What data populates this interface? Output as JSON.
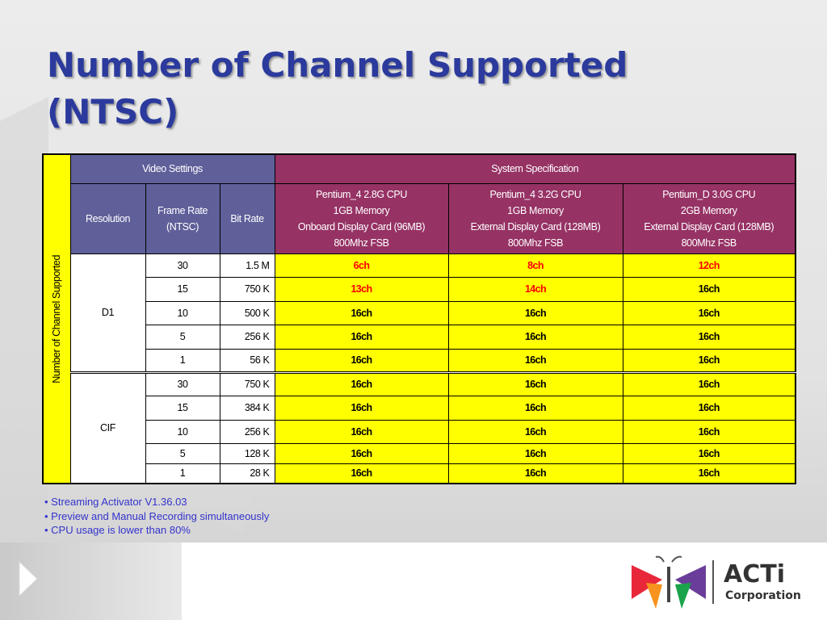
{
  "title": {
    "line1": "Number of Channel Supported",
    "line2": "(NTSC)"
  },
  "table": {
    "side_label": "Number of Channel Supported",
    "video_settings_label": "Video Settings",
    "system_spec_label": "System Specification",
    "col_resolution": "Resolution",
    "col_frame_rate": [
      "Frame Rate",
      "(NTSC)"
    ],
    "col_bit_rate": "Bit Rate",
    "specs": [
      [
        "Pentium_4 2.8G CPU",
        "1GB Memory",
        "Onboard Display Card (96MB)",
        "800Mhz FSB"
      ],
      [
        "Pentium_4 3.2G CPU",
        "1GB Memory",
        "External Display Card (128MB)",
        "800Mhz FSB"
      ],
      [
        "Pentium_D 3.0G CPU",
        "2GB Memory",
        "External Display Card (128MB)",
        "800Mhz FSB"
      ]
    ],
    "groups": [
      {
        "resolution": "D1",
        "rows": [
          {
            "fps": "30",
            "bitrate": "1.5 M",
            "ch": [
              "6ch",
              "8ch",
              "12ch"
            ],
            "red": [
              true,
              true,
              true
            ]
          },
          {
            "fps": "15",
            "bitrate": "750 K",
            "ch": [
              "13ch",
              "14ch",
              "16ch"
            ],
            "red": [
              true,
              true,
              false
            ]
          },
          {
            "fps": "10",
            "bitrate": "500 K",
            "ch": [
              "16ch",
              "16ch",
              "16ch"
            ],
            "red": [
              false,
              false,
              false
            ]
          },
          {
            "fps": "5",
            "bitrate": "256 K",
            "ch": [
              "16ch",
              "16ch",
              "16ch"
            ],
            "red": [
              false,
              false,
              false
            ]
          },
          {
            "fps": "1",
            "bitrate": "56 K",
            "ch": [
              "16ch",
              "16ch",
              "16ch"
            ],
            "red": [
              false,
              false,
              false
            ]
          }
        ]
      },
      {
        "resolution": "CIF",
        "rows": [
          {
            "fps": "30",
            "bitrate": "750 K",
            "ch": [
              "16ch",
              "16ch",
              "16ch"
            ],
            "red": [
              false,
              false,
              false
            ]
          },
          {
            "fps": "15",
            "bitrate": "384 K",
            "ch": [
              "16ch",
              "16ch",
              "16ch"
            ],
            "red": [
              false,
              false,
              false
            ]
          },
          {
            "fps": "10",
            "bitrate": "256 K",
            "ch": [
              "16ch",
              "16ch",
              "16ch"
            ],
            "red": [
              false,
              false,
              false
            ]
          },
          {
            "fps": "5",
            "bitrate": "128 K",
            "ch": [
              "16ch",
              "16ch",
              "16ch"
            ],
            "red": [
              false,
              false,
              false
            ]
          },
          {
            "fps": "1",
            "bitrate": "28 K",
            "ch": [
              "16ch",
              "16ch",
              "16ch"
            ],
            "red": [
              false,
              false,
              false
            ]
          }
        ]
      }
    ]
  },
  "notes": [
    "• Streaming Activator V1.36.03",
    "• Preview and Manual Recording simultaneously",
    "• CPU usage is lower than 80%"
  ],
  "logo": {
    "name": "ACTi",
    "sub": "Corporation"
  },
  "colors": {
    "title": "#2b3a9c",
    "video_header": "#5f5f9a",
    "spec_header": "#963264",
    "cell_highlight": "#ffff00",
    "alert_text": "#ff0000",
    "notes": "#3333cc"
  }
}
